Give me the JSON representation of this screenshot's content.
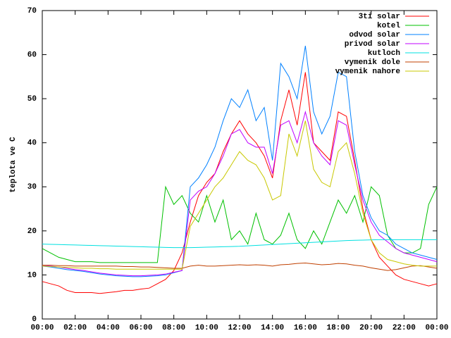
{
  "chart_data": {
    "type": "line",
    "y_label": "teplota ve C",
    "x": [
      0,
      0.5,
      1,
      1.5,
      2,
      2.5,
      3,
      3.5,
      4,
      4.5,
      5,
      5.5,
      6,
      6.5,
      7,
      7.5,
      8,
      8.5,
      9,
      9.5,
      10,
      10.5,
      11,
      11.5,
      12,
      12.5,
      13,
      13.5,
      14,
      14.5,
      15,
      15.5,
      16,
      16.5,
      17,
      17.5,
      18,
      18.5,
      19,
      19.5,
      20,
      20.5,
      21,
      21.5,
      22,
      22.5,
      23,
      23.5,
      24
    ],
    "xlim": [
      0,
      24
    ],
    "xticks": [
      {
        "value": 0,
        "label": "00:00"
      },
      {
        "value": 2,
        "label": "02:00"
      },
      {
        "value": 4,
        "label": "04:00"
      },
      {
        "value": 6,
        "label": "06:00"
      },
      {
        "value": 8,
        "label": "08:00"
      },
      {
        "value": 10,
        "label": "10:00"
      },
      {
        "value": 12,
        "label": "12:00"
      },
      {
        "value": 14,
        "label": "14:00"
      },
      {
        "value": 16,
        "label": "16:00"
      },
      {
        "value": 18,
        "label": "18:00"
      },
      {
        "value": 20,
        "label": "20:00"
      },
      {
        "value": 22,
        "label": "22:00"
      },
      {
        "value": 24,
        "label": "00:00"
      }
    ],
    "ylim": [
      0,
      70
    ],
    "yticks": [
      0,
      10,
      20,
      30,
      40,
      50,
      60,
      70
    ],
    "legend": "top-right",
    "series": [
      {
        "name": "3ti solar",
        "color": "#ff0000",
        "values": [
          8.5,
          8,
          7.5,
          6.5,
          6,
          6,
          6,
          5.8,
          6,
          6.2,
          6.5,
          6.5,
          6.8,
          7,
          8,
          9,
          11,
          15,
          22,
          28,
          31,
          33,
          38,
          42,
          45,
          42,
          40,
          37,
          32,
          45,
          52,
          44,
          56,
          40,
          38,
          36,
          47,
          46,
          36,
          25,
          18,
          14,
          12,
          10,
          9,
          8.5,
          8,
          7.5,
          8
        ]
      },
      {
        "name": "kotel",
        "color": "#00c000",
        "values": [
          16,
          15,
          14,
          13.5,
          13,
          13,
          13,
          12.8,
          12.8,
          12.8,
          12.8,
          12.8,
          12.8,
          12.8,
          12.8,
          30,
          26,
          28,
          24,
          22,
          28,
          22,
          27,
          18,
          20,
          17,
          24,
          18,
          17,
          19,
          24,
          18,
          16,
          20,
          17,
          22,
          27,
          24,
          28,
          22,
          30,
          28,
          19,
          16,
          15,
          15,
          16,
          26,
          30
        ]
      },
      {
        "name": "odvod solar",
        "color": "#0080ff",
        "values": [
          12,
          11.8,
          11.5,
          11.2,
          11,
          10.8,
          10.5,
          10.2,
          10,
          9.8,
          9.7,
          9.6,
          9.6,
          9.7,
          9.8,
          10,
          10.5,
          11,
          30,
          32,
          35,
          39,
          45,
          50,
          48,
          52,
          45,
          48,
          36,
          58,
          55,
          50,
          62,
          47,
          42,
          46,
          56,
          55,
          38,
          28,
          23,
          20,
          19,
          17,
          16,
          15,
          14.5,
          14,
          13.5
        ]
      },
      {
        "name": "privod solar",
        "color": "#c000ff",
        "values": [
          12.2,
          12,
          11.8,
          11.5,
          11.2,
          11,
          10.7,
          10.4,
          10.2,
          10,
          9.9,
          9.8,
          9.8,
          9.9,
          10,
          10.2,
          10.6,
          11,
          27,
          29,
          30,
          33,
          37,
          42,
          43,
          40,
          39,
          39,
          33,
          44,
          45,
          40,
          47,
          40,
          37,
          35,
          45,
          44,
          35,
          27,
          22,
          19,
          17.5,
          16,
          15,
          14.5,
          14,
          13.5,
          13
        ]
      },
      {
        "name": "kutloch",
        "color": "#00e0e0",
        "values": [
          17,
          16.95,
          16.9,
          16.85,
          16.8,
          16.75,
          16.7,
          16.65,
          16.6,
          16.55,
          16.5,
          16.45,
          16.4,
          16.35,
          16.3,
          16.25,
          16.2,
          16.2,
          16.2,
          16.25,
          16.3,
          16.35,
          16.4,
          16.45,
          16.5,
          16.6,
          16.7,
          16.8,
          16.9,
          17,
          17.1,
          17.2,
          17.3,
          17.4,
          17.5,
          17.6,
          17.7,
          17.8,
          17.85,
          17.9,
          17.95,
          18,
          18,
          18,
          18,
          18,
          18,
          18,
          18
        ]
      },
      {
        "name": "vymenik dole",
        "color": "#c04000",
        "values": [
          12.2,
          12.2,
          12.1,
          12.1,
          12,
          12,
          12,
          12,
          12,
          12,
          11.9,
          11.9,
          11.8,
          11.8,
          11.7,
          11.6,
          11.5,
          11.5,
          12,
          12.2,
          12,
          12,
          12.1,
          12.2,
          12.3,
          12.2,
          12.3,
          12.2,
          12,
          12.3,
          12.4,
          12.6,
          12.7,
          12.5,
          12.3,
          12.4,
          12.6,
          12.5,
          12.2,
          12,
          11.6,
          11.3,
          11,
          11.2,
          11.6,
          12,
          12.1,
          11.8,
          11.5
        ]
      },
      {
        "name": "vymenik nahore",
        "color": "#c8c800",
        "values": [
          12,
          11.9,
          11.8,
          11.7,
          11.6,
          11.5,
          11.5,
          11.4,
          11.4,
          11.3,
          11.3,
          11.3,
          11.3,
          11.3,
          11.3,
          11.3,
          11.3,
          11.3,
          21,
          24,
          27,
          30,
          32,
          35,
          38,
          36,
          35,
          32,
          27,
          28,
          42,
          37,
          45,
          34,
          31,
          30,
          38,
          40,
          33,
          24,
          18,
          15,
          13.5,
          13,
          12.5,
          12.2,
          12,
          12,
          12
        ]
      }
    ]
  }
}
